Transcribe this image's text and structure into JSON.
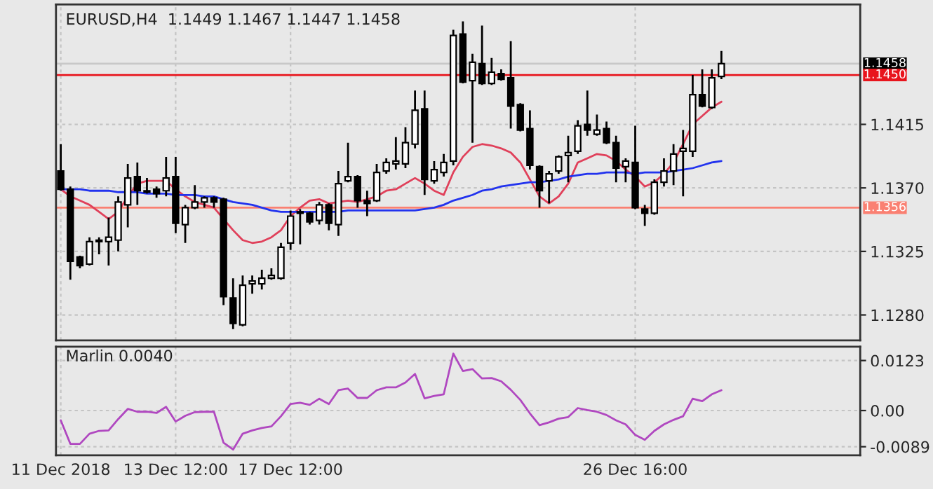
{
  "chart_data": [
    {
      "type": "candlestick",
      "title": "EURUSD,H4  1.1449 1.1467 1.1447 1.1458",
      "categories": [
        null,
        null,
        null,
        null,
        null,
        null,
        null,
        null,
        null,
        null,
        null,
        null,
        null,
        null,
        null,
        null,
        null,
        null,
        null,
        null,
        null,
        null,
        null,
        null,
        null,
        null,
        null,
        null,
        null,
        null,
        null,
        null,
        null,
        null,
        null,
        null,
        null,
        null,
        null,
        null,
        null,
        null,
        null,
        null,
        null,
        null,
        null,
        null,
        null,
        null,
        null,
        null,
        null,
        null,
        null,
        null,
        null,
        null,
        null,
        null,
        null,
        null,
        null,
        null,
        null,
        null,
        null,
        null,
        null,
        null,
        null,
        null,
        null,
        null,
        null,
        null,
        null,
        null,
        null,
        null,
        null,
        null,
        null,
        null
      ],
      "ohlc": [
        [
          1.1382,
          1.1401,
          1.1368,
          1.1369
        ],
        [
          1.1369,
          1.1371,
          1.1305,
          1.1318
        ],
        [
          1.1321,
          1.1322,
          1.1313,
          1.1315
        ],
        [
          1.1316,
          1.1335,
          1.1315,
          1.1332
        ],
        [
          1.1332,
          1.1335,
          1.1323,
          1.1333
        ],
        [
          1.1332,
          1.1349,
          1.1315,
          1.1335
        ],
        [
          1.1333,
          1.1364,
          1.1325,
          1.136
        ],
        [
          1.1358,
          1.1387,
          1.1342,
          1.1377
        ],
        [
          1.1378,
          1.1388,
          1.1358,
          1.1368
        ],
        [
          1.1368,
          1.1377,
          1.1366,
          1.1367
        ],
        [
          1.1369,
          1.1371,
          1.1363,
          1.1366
        ],
        [
          1.1368,
          1.1392,
          1.1364,
          1.1377
        ],
        [
          1.1378,
          1.1392,
          1.1338,
          1.1345
        ],
        [
          1.1344,
          1.1358,
          1.1331,
          1.1356
        ],
        [
          1.1356,
          1.1372,
          1.1355,
          1.136
        ],
        [
          1.136,
          1.1364,
          1.1356,
          1.1363
        ],
        [
          1.1363,
          1.1364,
          1.1356,
          1.136
        ],
        [
          1.1362,
          1.1363,
          1.1287,
          1.1293
        ],
        [
          1.1292,
          1.1306,
          1.127,
          1.1274
        ],
        [
          1.1273,
          1.1308,
          1.1272,
          1.1301
        ],
        [
          1.1302,
          1.1308,
          1.1295,
          1.1304
        ],
        [
          1.1302,
          1.1312,
          1.1298,
          1.1306
        ],
        [
          1.1306,
          1.1313,
          1.1305,
          1.1308
        ],
        [
          1.1306,
          1.1331,
          1.1305,
          1.1328
        ],
        [
          1.1331,
          1.1354,
          1.1326,
          1.135
        ],
        [
          1.1353,
          1.1355,
          1.133,
          1.1352
        ],
        [
          1.1352,
          1.1353,
          1.1344,
          1.1346
        ],
        [
          1.1347,
          1.136,
          1.1344,
          1.1358
        ],
        [
          1.1358,
          1.1359,
          1.134,
          1.1345
        ],
        [
          1.1344,
          1.1382,
          1.1336,
          1.1373
        ],
        [
          1.1375,
          1.1402,
          1.1374,
          1.1378
        ],
        [
          1.1378,
          1.1379,
          1.1356,
          1.1361
        ],
        [
          1.1361,
          1.1368,
          1.135,
          1.1359
        ],
        [
          1.1361,
          1.1387,
          1.136,
          1.1381
        ],
        [
          1.1382,
          1.1391,
          1.138,
          1.1388
        ],
        [
          1.1387,
          1.1406,
          1.1383,
          1.1389
        ],
        [
          1.1387,
          1.1413,
          1.1384,
          1.1402
        ],
        [
          1.1401,
          1.1439,
          1.1398,
          1.1425
        ],
        [
          1.1426,
          1.1439,
          1.1365,
          1.1376
        ],
        [
          1.1375,
          1.1389,
          1.1373,
          1.1383
        ],
        [
          1.1381,
          1.1394,
          1.1378,
          1.1388
        ],
        [
          1.1389,
          1.1482,
          1.1386,
          1.1478
        ],
        [
          1.1479,
          1.1488,
          1.1444,
          1.1445
        ],
        [
          1.1446,
          1.1465,
          1.1402,
          1.1459
        ],
        [
          1.1458,
          1.1485,
          1.1443,
          1.1444
        ],
        [
          1.1444,
          1.1462,
          1.1443,
          1.1452
        ],
        [
          1.1451,
          1.1454,
          1.1446,
          1.1447
        ],
        [
          1.1448,
          1.1474,
          1.1412,
          1.1428
        ],
        [
          1.1429,
          1.143,
          1.141,
          1.1411
        ],
        [
          1.1412,
          1.1425,
          1.1383,
          1.1386
        ],
        [
          1.1385,
          1.1386,
          1.1356,
          1.1368
        ],
        [
          1.1375,
          1.1382,
          1.1359,
          1.138
        ],
        [
          1.1382,
          1.1393,
          1.138,
          1.1392
        ],
        [
          1.1393,
          1.1407,
          1.1374,
          1.1395
        ],
        [
          1.1396,
          1.1418,
          1.1394,
          1.1414
        ],
        [
          1.1415,
          1.1439,
          1.1407,
          1.1411
        ],
        [
          1.1408,
          1.1422,
          1.1407,
          1.1411
        ],
        [
          1.1412,
          1.1417,
          1.1401,
          1.1402
        ],
        [
          1.1402,
          1.1407,
          1.1374,
          1.1384
        ],
        [
          1.1385,
          1.1391,
          1.1374,
          1.1389
        ],
        [
          1.1388,
          1.1414,
          1.1355,
          1.1356
        ],
        [
          1.1355,
          1.1358,
          1.1343,
          1.1352
        ],
        [
          1.1352,
          1.1376,
          1.1351,
          1.1374
        ],
        [
          1.1374,
          1.1391,
          1.1371,
          1.1382
        ],
        [
          1.1382,
          1.1401,
          1.1372,
          1.1394
        ],
        [
          1.1396,
          1.1411,
          1.1364,
          1.1398
        ],
        [
          1.1396,
          1.145,
          1.1392,
          1.1436
        ],
        [
          1.1436,
          1.1454,
          1.1427,
          1.1428
        ],
        [
          1.1427,
          1.1454,
          1.1426,
          1.1448
        ],
        [
          1.1449,
          1.1467,
          1.1447,
          1.1458
        ],
        null,
        null,
        null,
        null,
        null,
        null,
        null,
        null,
        null,
        null,
        null,
        null,
        null,
        null
      ],
      "series": [
        {
          "type": "line",
          "color": "#e0405a",
          "values": [
            1.1369,
            1.1364,
            1.1361,
            1.1358,
            1.1353,
            1.1348,
            1.1353,
            1.1364,
            1.1373,
            1.1375,
            1.1375,
            1.1375,
            1.1369,
            1.1364,
            1.136,
            1.1358,
            1.1356,
            1.1348,
            1.134,
            1.1333,
            1.1331,
            1.1332,
            1.1335,
            1.134,
            1.135,
            1.1356,
            1.1361,
            1.1362,
            1.1359,
            1.136,
            1.1361,
            1.136,
            1.1362,
            1.1364,
            1.1368,
            1.1369,
            1.1373,
            1.1377,
            1.1373,
            1.1368,
            1.1365,
            1.1381,
            1.1392,
            1.1399,
            1.1401,
            1.14,
            1.1398,
            1.1395,
            1.1388,
            1.1376,
            1.1364,
            1.1359,
            1.1364,
            1.1373,
            1.1388,
            1.1391,
            1.1394,
            1.1393,
            1.1389,
            1.1383,
            1.1378,
            1.1371,
            1.1374,
            1.138,
            1.1388,
            1.1401,
            1.1415,
            1.1421,
            1.1427,
            1.1431,
            null,
            null,
            null,
            null,
            null,
            null,
            null,
            null,
            null,
            null,
            null,
            null,
            null,
            null
          ]
        },
        {
          "type": "line",
          "color": "#2233ee",
          "values": [
            1.1369,
            1.1369,
            1.1369,
            1.1368,
            1.1368,
            1.1368,
            1.1367,
            1.1367,
            1.1367,
            1.1366,
            1.1366,
            1.1366,
            1.1365,
            1.1365,
            1.1365,
            1.1364,
            1.1364,
            1.1362,
            1.136,
            1.1359,
            1.1358,
            1.1356,
            1.1354,
            1.1353,
            1.1353,
            1.1353,
            1.1353,
            1.1353,
            1.1353,
            1.1353,
            1.1354,
            1.1354,
            1.1354,
            1.1354,
            1.1354,
            1.1354,
            1.1354,
            1.1354,
            1.1355,
            1.1356,
            1.1358,
            1.1361,
            1.1363,
            1.1365,
            1.1368,
            1.1369,
            1.1371,
            1.1372,
            1.1373,
            1.1374,
            1.1374,
            1.1375,
            1.1376,
            1.1378,
            1.1379,
            1.138,
            1.138,
            1.1381,
            1.1381,
            1.1381,
            1.138,
            1.1381,
            1.1381,
            1.1381,
            1.1382,
            1.1383,
            1.1384,
            1.1386,
            1.1388,
            1.1389,
            null,
            null,
            null,
            null,
            null,
            null,
            null,
            null,
            null,
            null,
            null,
            null,
            null,
            null
          ]
        }
      ],
      "ylim": [
        1.1262,
        1.15
      ],
      "yticks": [
        {
          "value": 1.128,
          "label": "1.1280"
        },
        {
          "value": 1.1325,
          "label": "1.1325"
        },
        {
          "value": 1.137,
          "label": "1.1370"
        },
        {
          "value": 1.1415,
          "label": "1.1415"
        }
      ],
      "ref_lines": [
        {
          "axis": "y",
          "value": 1.1458,
          "label": "1.1458",
          "color": "#c8c8c8"
        },
        {
          "axis": "y",
          "value": 1.145,
          "label": "1.1450",
          "color": "#e8141c"
        },
        {
          "axis": "y",
          "value": 1.1356,
          "label": "1.1356",
          "color": "#fa8072"
        }
      ],
      "grid": true,
      "tick_labels": "y"
    },
    {
      "type": "line",
      "title": "Marlin 0.0040",
      "categories": [
        "11 Dec 2018",
        null,
        null,
        null,
        null,
        null,
        null,
        null,
        null,
        null,
        null,
        null,
        "13 Dec 12:00",
        null,
        null,
        null,
        null,
        null,
        null,
        null,
        null,
        null,
        null,
        null,
        "17 Dec 12:00",
        null,
        null,
        null,
        null,
        null,
        null,
        null,
        null,
        null,
        null,
        null,
        null,
        null,
        null,
        null,
        null,
        null,
        null,
        null,
        null,
        null,
        null,
        null,
        null,
        null,
        null,
        null,
        null,
        null,
        null,
        null,
        null,
        null,
        null,
        null,
        "26 Dec 16:00",
        null,
        null,
        null,
        null,
        null,
        null,
        null,
        null,
        null,
        null,
        null,
        null,
        null,
        null,
        null,
        null,
        null,
        null,
        null,
        null,
        null,
        null,
        null
      ],
      "series": [
        {
          "color": "#b048c0",
          "values": [
            -0.0024,
            -0.0082,
            -0.0082,
            -0.0057,
            -0.005,
            -0.0049,
            -0.0021,
            0.0004,
            -0.0003,
            -0.0003,
            -0.0006,
            0.0009,
            -0.0027,
            -0.0013,
            -0.0004,
            -0.0003,
            -0.0003,
            -0.0079,
            -0.0096,
            -0.0057,
            -0.0049,
            -0.0043,
            -0.0039,
            -0.0014,
            0.0016,
            0.0019,
            0.0014,
            0.0029,
            0.0016,
            0.005,
            0.0054,
            0.0031,
            0.0031,
            0.005,
            0.0057,
            0.0057,
            0.0069,
            0.009,
            0.003,
            0.0036,
            0.004,
            0.014,
            0.0097,
            0.0102,
            0.0079,
            0.008,
            0.0072,
            0.0051,
            0.0026,
            -0.0007,
            -0.0036,
            -0.0029,
            -0.002,
            -0.0016,
            0.0006,
            0.0001,
            -0.0003,
            -0.0011,
            -0.0024,
            -0.0034,
            -0.006,
            -0.0072,
            -0.005,
            -0.0034,
            -0.0023,
            -0.0014,
            0.0029,
            0.0023,
            0.004,
            0.005,
            null,
            null,
            null,
            null,
            null,
            null,
            null,
            null,
            null,
            null,
            null,
            null,
            null,
            null
          ]
        }
      ],
      "ylim": [
        -0.011,
        0.0157
      ],
      "yticks": [
        {
          "value": -0.0089,
          "label": "-0.0089"
        },
        {
          "value": 0,
          "label": "0.00"
        },
        {
          "value": 0.0123,
          "label": "0.0123"
        }
      ],
      "grid": true
    }
  ]
}
